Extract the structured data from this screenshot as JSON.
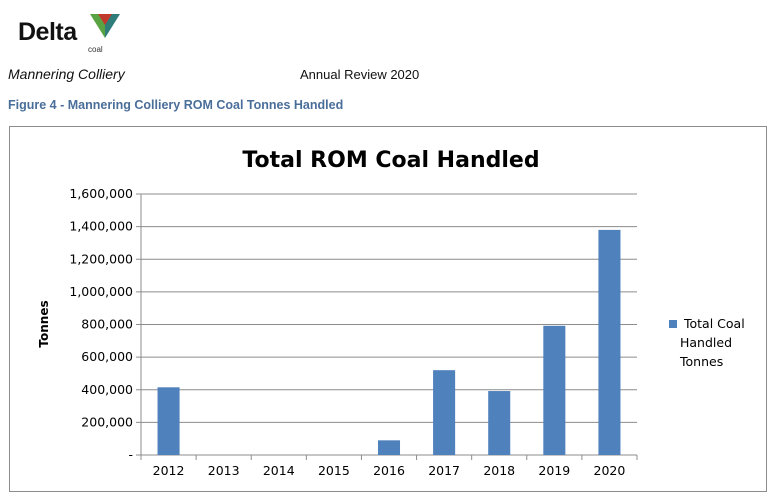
{
  "header": {
    "logo_text": "Delta",
    "logo_sub": "coal",
    "doc_name": "Mannering Colliery",
    "doc_review": "Annual Review 2020",
    "figure_caption": "Figure 4 - Mannering Colliery ROM Coal Tonnes Handled"
  },
  "colors": {
    "bar": "#4f81bd",
    "caption": "#4a6e9a",
    "logo_green": "#5aa343",
    "logo_red": "#c0392b",
    "logo_teal": "#2e7d7a"
  },
  "chart_data": {
    "type": "bar",
    "title": "Total ROM Coal Handled",
    "xlabel": "",
    "ylabel": "Tonnes",
    "categories": [
      "2012",
      "2013",
      "2014",
      "2015",
      "2016",
      "2017",
      "2018",
      "2019",
      "2020"
    ],
    "series": [
      {
        "name": "Total Coal Handled Tonnes",
        "values": [
          415000,
          0,
          0,
          0,
          90000,
          520000,
          392000,
          792000,
          1380000
        ]
      }
    ],
    "ylim": [
      0,
      1600000
    ],
    "yticks": [
      0,
      200000,
      400000,
      600000,
      800000,
      1000000,
      1200000,
      1400000,
      1600000
    ],
    "ytick_labels": [
      "-",
      "200,000",
      "400,000",
      "600,000",
      "800,000",
      "1,000,000",
      "1,200,000",
      "1,400,000",
      "1,600,000"
    ],
    "grid": true,
    "legend_position": "right",
    "legend_lines": [
      "Total Coal",
      "Handled",
      "Tonnes"
    ]
  }
}
